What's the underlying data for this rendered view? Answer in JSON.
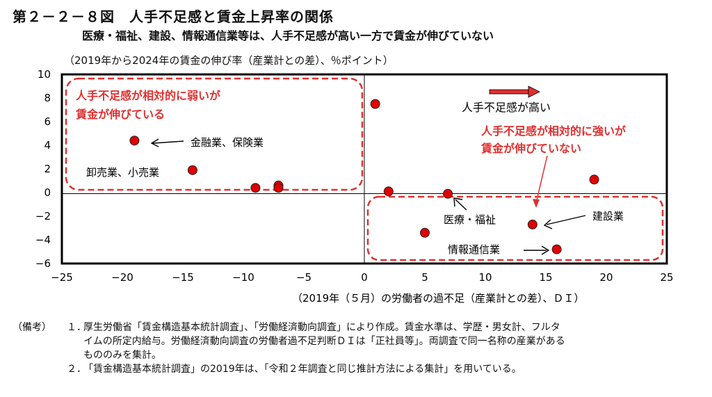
{
  "header": {
    "title": "第２－２－８図　人手不足感と賃金上昇率の関係",
    "subtitle": "医療・福祉、建設、情報通信業等は、人手不足感が高い一方で賃金が伸びていない",
    "unit": "（2019年から2024年の賃金の伸び率（産業計との差）、％ポイント）"
  },
  "chart_data": {
    "type": "scatter",
    "title": "第２－２－８図　人手不足感と賃金上昇率の関係",
    "subtitle": "医療・福祉、建設、情報通信業等は、人手不足感が高い一方で賃金が伸びていない",
    "xlabel": "（2019年（５月）の労働者の過不足（産業計との差）、ＤＩ）",
    "ylabel": "（2019年から2024年の賃金の伸び率（産業計との差）、％ポイント）",
    "xlim": [
      -25,
      25
    ],
    "ylim": [
      -6,
      10
    ],
    "xticks": [
      -25,
      -20,
      -15,
      -10,
      -5,
      0,
      5,
      10,
      15,
      20,
      25
    ],
    "xtick_labels": [
      "−25",
      "−20",
      "−15",
      "−10",
      "−5",
      "0",
      "5",
      "10",
      "15",
      "20",
      "25"
    ],
    "yticks": [
      10,
      8,
      6,
      4,
      2,
      0,
      -2,
      -4,
      -6
    ],
    "ytick_labels": [
      "10",
      "8",
      "6",
      "4",
      "2",
      "0",
      "−2",
      "−4",
      "−6"
    ],
    "grid": false,
    "marker_color": "#e00000",
    "accent_color": "#e03030",
    "points": [
      {
        "x": -19.0,
        "y": 4.4,
        "label": "金融業、保険業"
      },
      {
        "x": -14.2,
        "y": 1.9,
        "label": "卸売業、小売業"
      },
      {
        "x": -9.0,
        "y": 0.4
      },
      {
        "x": -7.1,
        "y": 0.6
      },
      {
        "x": -7.1,
        "y": 0.4
      },
      {
        "x": 0.9,
        "y": 7.5
      },
      {
        "x": 2.0,
        "y": 0.1
      },
      {
        "x": 6.9,
        "y": -0.1,
        "label": "医療・福祉"
      },
      {
        "x": 5.0,
        "y": -3.4
      },
      {
        "x": 13.9,
        "y": -2.7,
        "label": "建設業"
      },
      {
        "x": 15.9,
        "y": -4.8,
        "label": "情報通信業"
      },
      {
        "x": 19.0,
        "y": 1.1
      }
    ],
    "annotations": {
      "upper_left_box": "人手不足感が相対的に弱いが賃金が伸びている",
      "lower_right_box": "人手不足感が相対的に強いが賃金が伸びていない",
      "arrow": "人手不足感が高い"
    }
  },
  "annotations": {
    "box_left_line1": "人手不足感が相対的に弱いが",
    "box_left_line2": "賃金が伸びている",
    "box_right_line1": "人手不足感が相対的に強いが",
    "box_right_line2": "賃金が伸びていない",
    "arrow_label": "人手不足感が高い"
  },
  "labels": {
    "finance": "金融業、保険業",
    "wholesale": "卸売業、小売業",
    "medical": "医療・福祉",
    "construction": "建設業",
    "info": "情報通信業"
  },
  "notes": {
    "head": "（備考）",
    "n1_num": "１．",
    "n1_line1": "厚生労働省「賃金構造基本統計調査」、「労働経済動向調査」により作成。賃金水準は、学歴・男女計、フルタ",
    "n1_line2": "イムの所定内給与。労働経済動向調査の労働者過不足判断ＤＩは「正社員等」。両調査で同一名称の産業がある",
    "n1_line3": "もののみを集計。",
    "n2_num": "２．",
    "n2_line1": "「賃金構造基本統計調査」の2019年は、「令和２年調査と同じ推計方法による集計」を用いている。"
  }
}
